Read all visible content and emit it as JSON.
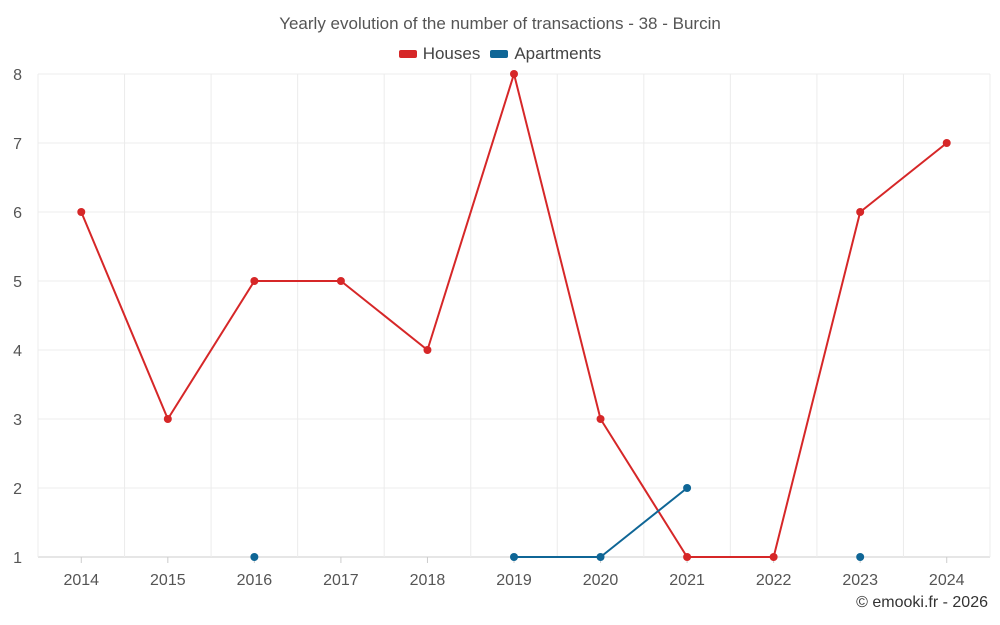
{
  "chart_data": {
    "type": "line",
    "title": "Yearly evolution of the number of transactions - 38 - Burcin",
    "categories": [
      "2014",
      "2015",
      "2016",
      "2017",
      "2018",
      "2019",
      "2020",
      "2021",
      "2022",
      "2023",
      "2024"
    ],
    "series": [
      {
        "name": "Houses",
        "color": "#d62728",
        "values": [
          6,
          3,
          5,
          5,
          4,
          8,
          3,
          1,
          1,
          6,
          7
        ]
      },
      {
        "name": "Apartments",
        "color": "#0f6696",
        "values": [
          null,
          null,
          1,
          null,
          null,
          1,
          1,
          2,
          null,
          1,
          null
        ]
      }
    ],
    "yticks": [
      1,
      2,
      3,
      4,
      5,
      6,
      7,
      8
    ],
    "ylim": [
      1,
      8
    ],
    "grid": true,
    "legend_position": "top-center"
  },
  "credit": "© emooki.fr - 2026"
}
